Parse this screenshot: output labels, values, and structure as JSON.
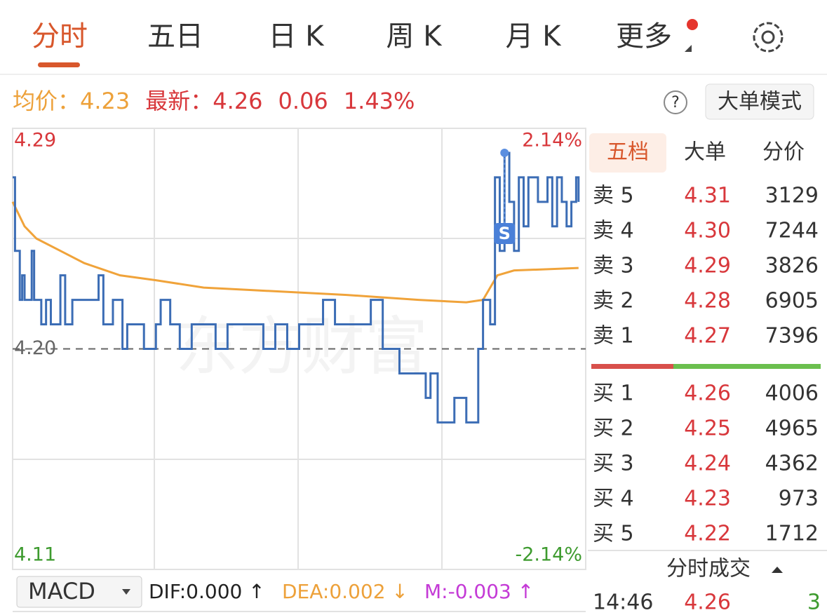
{
  "tabs": [
    "分时",
    "五日",
    "日 K",
    "周 K",
    "月 K",
    "更多"
  ],
  "info": {
    "avg_label": "均价：",
    "avg": "4.23",
    "latest_label": "最新：",
    "latest": "4.26",
    "change": "0.06",
    "change_pct": "1.43%"
  },
  "mode_button": "大单模式",
  "chart_data": {
    "type": "line",
    "xlim": [
      0,
      240
    ],
    "ylim": [
      4.11,
      4.29
    ],
    "yticks": [
      4.29,
      {
        "value": 4.2,
        "label": "4.20"
      },
      4.11
    ],
    "y2lim": [
      -2.14,
      2.14
    ],
    "y2ticks": [
      {
        "value": 2.14,
        "label": "2.14%"
      },
      {
        "value": -2.14,
        "label": "-2.14%"
      }
    ],
    "marker_label": "S",
    "series": [
      {
        "color": "#3c6db5",
        "x": [
          0,
          1,
          3,
          4,
          5,
          7,
          8,
          9,
          12,
          14,
          16,
          20,
          22,
          25,
          30,
          36,
          38,
          42,
          46,
          48,
          55,
          60,
          62,
          66,
          70,
          75,
          80,
          85,
          90,
          100,
          105,
          110,
          115,
          120,
          130,
          135,
          150,
          155,
          160,
          162,
          165,
          173,
          175,
          178,
          185,
          190,
          193,
          195,
          197,
          199,
          200,
          202,
          204,
          206,
          208,
          210,
          212,
          214,
          216,
          220,
          224,
          226,
          228,
          230,
          232,
          234,
          236,
          237
        ],
        "values": [
          4.27,
          4.24,
          4.22,
          4.23,
          4.22,
          4.22,
          4.24,
          4.22,
          4.21,
          4.22,
          4.21,
          4.23,
          4.21,
          4.22,
          4.22,
          4.23,
          4.21,
          4.22,
          4.2,
          4.21,
          4.2,
          4.21,
          4.22,
          4.21,
          4.2,
          4.21,
          4.21,
          4.2,
          4.21,
          4.21,
          4.2,
          4.21,
          4.2,
          4.21,
          4.22,
          4.21,
          4.22,
          4.2,
          4.2,
          4.19,
          4.19,
          4.18,
          4.19,
          4.17,
          4.18,
          4.17,
          4.17,
          4.2,
          4.22,
          4.22,
          4.21,
          4.27,
          4.24,
          4.28,
          4.26,
          4.24,
          4.27,
          4.25,
          4.27,
          4.26,
          4.27,
          4.25,
          4.27,
          4.26,
          4.25,
          4.26,
          4.27,
          4.26
        ]
      },
      {
        "color": "#f0a33a",
        "x": [
          0,
          5,
          10,
          20,
          30,
          45,
          60,
          80,
          100,
          140,
          170,
          190,
          197,
          200,
          203,
          210,
          237
        ],
        "values": [
          4.26,
          4.25,
          4.245,
          4.24,
          4.235,
          4.23,
          4.228,
          4.225,
          4.224,
          4.222,
          4.22,
          4.219,
          4.22,
          4.225,
          4.23,
          4.232,
          4.233
        ]
      }
    ]
  },
  "macd": {
    "name": "MACD",
    "dif": "DIF:0.000 ↑",
    "dea": "DEA:0.002 ↓",
    "m": "M:-0.003 ↑"
  },
  "order_book": {
    "tabs": [
      "五档",
      "大单",
      "分价"
    ],
    "sell": [
      {
        "label": "卖 5",
        "price": "4.31",
        "volume": "3129"
      },
      {
        "label": "卖 4",
        "price": "4.30",
        "volume": "7244"
      },
      {
        "label": "卖 3",
        "price": "4.29",
        "volume": "3826"
      },
      {
        "label": "卖 2",
        "price": "4.28",
        "volume": "6905"
      },
      {
        "label": "卖 1",
        "price": "4.27",
        "volume": "7396"
      }
    ],
    "buy": [
      {
        "label": "买 1",
        "price": "4.26",
        "volume": "4006"
      },
      {
        "label": "买 2",
        "price": "4.25",
        "volume": "4965"
      },
      {
        "label": "买 3",
        "price": "4.24",
        "volume": "4362"
      },
      {
        "label": "买 4",
        "price": "4.23",
        "volume": "973"
      },
      {
        "label": "买 5",
        "price": "4.22",
        "volume": "1712"
      }
    ]
  },
  "trades": {
    "title": "分时成交",
    "rows": [
      [
        "14:46",
        "4.26",
        "3"
      ]
    ]
  }
}
